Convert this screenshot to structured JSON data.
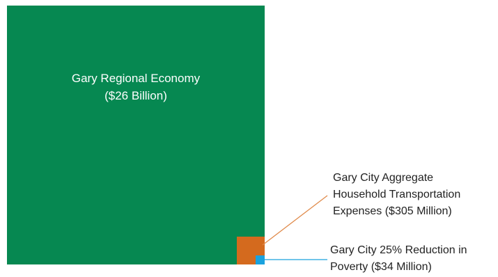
{
  "diagram": {
    "regional_economy": {
      "label_line1": "Gary Regional Economy",
      "label_line2": "($26 Billion)",
      "color": "#068851"
    },
    "transportation_expenses": {
      "label_line1": "Gary City Aggregate",
      "label_line2": "Household Transportation",
      "label_line3": "Expenses ($305 Million)",
      "color": "#d46a1e",
      "leader_color": "#e08a4a"
    },
    "poverty_reduction": {
      "label_line1": "Gary City 25% Reduction in",
      "label_line2": "Poverty ($34 Million)",
      "color": "#1aa2de"
    }
  }
}
